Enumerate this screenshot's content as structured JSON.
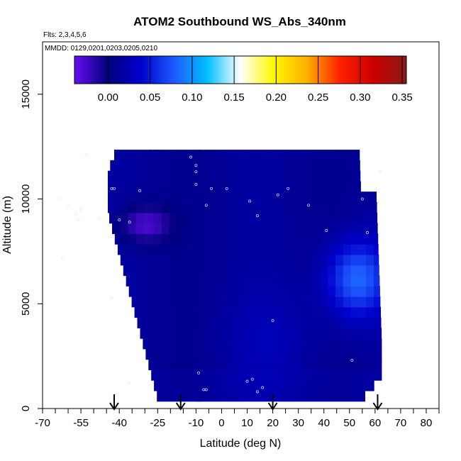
{
  "chart_data": {
    "type": "heatmap",
    "title": "ATOM2 Southbound WS_Abs_340nm",
    "subtitle_flights": "Flts: 2,3,4,5,6",
    "subtitle_dates": "MMDD: 0129,0201,0203,0205,0210",
    "xlabel": "Latitude (deg N)",
    "ylabel": "Altitude (m)",
    "xlim": [
      -70,
      85
    ],
    "ylim": [
      0,
      17500
    ],
    "x_tick_labels": [
      -70,
      -55,
      -40,
      -25,
      -10,
      0,
      10,
      20,
      30,
      40,
      50,
      60,
      70,
      80
    ],
    "x_minor_ticks": [
      -65,
      -60,
      -50,
      -45,
      -35,
      -30,
      -20,
      -15,
      -5,
      5,
      15,
      25,
      35,
      45,
      55,
      65,
      75,
      85
    ],
    "y_ticks": [
      0,
      5000,
      10000,
      15000
    ],
    "colorbar": {
      "range": [
        -0.04,
        0.355
      ],
      "ticks": [
        0.0,
        0.05,
        0.1,
        0.15,
        0.2,
        0.25,
        0.3,
        0.35
      ],
      "tick_labels": [
        "0.00",
        "0.05",
        "0.10",
        "0.15",
        "0.20",
        "0.25",
        "0.30",
        "0.35"
      ],
      "colors": [
        "#6a0df0",
        "#00007d",
        "#0000cd",
        "#1e5aff",
        "#00bfff",
        "#ffffff",
        "#fff700",
        "#ffb000",
        "#ff2000",
        "#cd0000",
        "#8b1a1a"
      ]
    },
    "field": {
      "x": [
        -43,
        -41,
        -38,
        -35,
        -32,
        -29,
        -27,
        -25,
        -22,
        -19,
        -16,
        -13,
        -10,
        -8,
        -5,
        -2,
        1,
        4,
        7,
        10,
        13,
        16,
        19,
        22,
        25,
        28,
        31,
        34,
        37,
        40,
        43,
        46,
        49,
        52,
        55,
        58,
        61
      ],
      "y": [
        600,
        1100,
        1600,
        2100,
        2600,
        3100,
        3600,
        4100,
        4600,
        5100,
        5600,
        6100,
        6600,
        7100,
        7600,
        8100,
        8600,
        9100,
        9600,
        10100,
        10600,
        11100,
        11600,
        12100
      ],
      "notes": "Gridded WS absorption values; low (~0) at most altitudes, dark minimum ~0.01 mid-band, negative (~-0.03) near 9 km south of -20, enhanced (~0.07-0.10) between 35-60 N at 4-8 km",
      "anomalies": [
        {
          "x": -30,
          "y": 8800,
          "value": -0.03,
          "sx": 10,
          "sy": 900
        },
        {
          "x": -50,
          "y": 9400,
          "value": 0.03,
          "sx": 5,
          "sy": 400
        },
        {
          "x": 53,
          "y": 6200,
          "value": 0.085,
          "sx": 12,
          "sy": 1800
        },
        {
          "x": 20,
          "y": 3200,
          "value": 0.025,
          "sx": 18,
          "sy": 2500
        }
      ]
    },
    "sample_points": [
      [
        -53,
        12100
      ],
      [
        -12,
        12000
      ],
      [
        -10,
        11600
      ],
      [
        -10,
        11300
      ],
      [
        -10,
        10700
      ],
      [
        -43,
        10500
      ],
      [
        -42,
        10500
      ],
      [
        -32,
        10400
      ],
      [
        -4,
        10500
      ],
      [
        2,
        10500
      ],
      [
        11,
        9900
      ],
      [
        14,
        9200
      ],
      [
        22,
        10200
      ],
      [
        26,
        10500
      ],
      [
        34,
        9700
      ],
      [
        -55,
        9500
      ],
      [
        -63,
        10000
      ],
      [
        -60,
        9700
      ],
      [
        -57,
        9300
      ],
      [
        -56,
        9000
      ],
      [
        -48,
        9100
      ],
      [
        -40,
        9000
      ],
      [
        -36,
        8900
      ],
      [
        -6,
        9700
      ],
      [
        41,
        8500
      ],
      [
        55,
        10000
      ],
      [
        57,
        8400
      ],
      [
        62,
        11300
      ],
      [
        -62,
        7200
      ],
      [
        -43,
        5300
      ],
      [
        20,
        4200
      ],
      [
        51,
        2300
      ],
      [
        -36,
        1200
      ],
      [
        -9,
        1700
      ],
      [
        -7,
        900
      ],
      [
        -6,
        900
      ],
      [
        10,
        1300
      ],
      [
        12,
        1400
      ],
      [
        14,
        800
      ],
      [
        16,
        1000
      ]
    ],
    "arrows_at_latitude": [
      -42,
      -16,
      20,
      61
    ]
  }
}
